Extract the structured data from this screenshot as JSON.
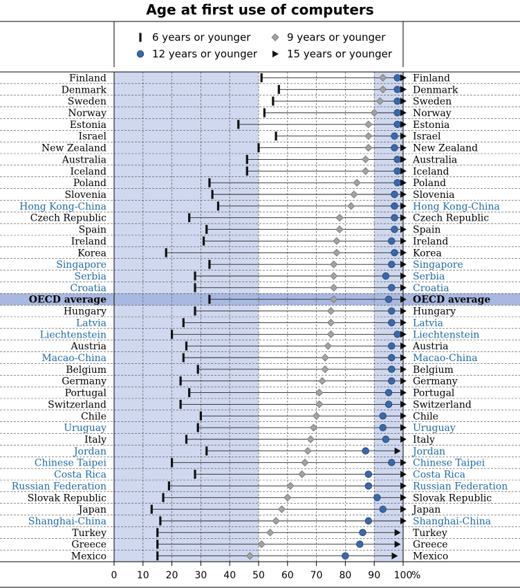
{
  "chart_data": {
    "type": "scatter",
    "title": "Age at first use of computers",
    "xlim": [
      0,
      100
    ],
    "xticks": [
      "0",
      "10",
      "20",
      "30",
      "40",
      "50",
      "60",
      "70",
      "80",
      "90",
      "100"
    ],
    "x_unit": "%",
    "shaded_ranges": [
      [
        0,
        50
      ],
      [
        90,
        100
      ]
    ],
    "grid": true,
    "legend_position": "top",
    "colors": {
      "oecd_label": "#000000",
      "partner_label": "#1f6aa5",
      "shade": "#d0d8ef",
      "oecd_band": "#a8b8e0",
      "circle": "#3d68a8",
      "diamond": "#a3a3a3"
    },
    "series": [
      {
        "name": "6 years or younger",
        "marker": "bar"
      },
      {
        "name": "9 years or younger",
        "marker": "diamond"
      },
      {
        "name": "12 years or younger",
        "marker": "circle"
      },
      {
        "name": "15 years or younger",
        "marker": "triangle"
      }
    ],
    "rows": [
      {
        "label": "Finland",
        "group": "oecd",
        "values": [
          51,
          93,
          98,
          100
        ]
      },
      {
        "label": "Denmark",
        "group": "oecd",
        "values": [
          57,
          93,
          98,
          100
        ]
      },
      {
        "label": "Sweden",
        "group": "oecd",
        "values": [
          55,
          92,
          98,
          100
        ]
      },
      {
        "label": "Norway",
        "group": "oecd",
        "values": [
          52,
          90,
          98,
          100
        ]
      },
      {
        "label": "Estonia",
        "group": "oecd",
        "values": [
          43,
          88,
          98,
          100
        ]
      },
      {
        "label": "Israel",
        "group": "oecd",
        "values": [
          56,
          88,
          97,
          100
        ]
      },
      {
        "label": "New Zealand",
        "group": "oecd",
        "values": [
          50,
          88,
          97,
          100
        ]
      },
      {
        "label": "Australia",
        "group": "oecd",
        "values": [
          46,
          87,
          98,
          100
        ]
      },
      {
        "label": "Iceland",
        "group": "oecd",
        "values": [
          46,
          87,
          98,
          100
        ]
      },
      {
        "label": "Poland",
        "group": "oecd",
        "values": [
          33,
          84,
          98,
          100
        ]
      },
      {
        "label": "Slovenia",
        "group": "oecd",
        "values": [
          34,
          83,
          97,
          100
        ]
      },
      {
        "label": "Hong Kong-China",
        "group": "partner",
        "values": [
          36,
          82,
          97,
          100
        ]
      },
      {
        "label": "Czech Republic",
        "group": "oecd",
        "values": [
          26,
          78,
          97,
          100
        ]
      },
      {
        "label": "Spain",
        "group": "oecd",
        "values": [
          32,
          78,
          97,
          100
        ]
      },
      {
        "label": "Ireland",
        "group": "oecd",
        "values": [
          31,
          77,
          96,
          100
        ]
      },
      {
        "label": "Korea",
        "group": "oecd",
        "values": [
          18,
          77,
          97,
          100
        ]
      },
      {
        "label": "Singapore",
        "group": "partner",
        "values": [
          33,
          76,
          96,
          100
        ]
      },
      {
        "label": "Serbia",
        "group": "partner",
        "values": [
          28,
          76,
          94,
          100
        ]
      },
      {
        "label": "Croatia",
        "group": "partner",
        "values": [
          28,
          76,
          96,
          100
        ]
      },
      {
        "label": "OECD average",
        "group": "average",
        "values": [
          33,
          76,
          95,
          100
        ]
      },
      {
        "label": "Hungary",
        "group": "oecd",
        "values": [
          28,
          75,
          96,
          100
        ]
      },
      {
        "label": "Latvia",
        "group": "partner",
        "values": [
          24,
          75,
          96,
          100
        ]
      },
      {
        "label": "Liechtenstein",
        "group": "partner",
        "values": [
          20,
          75,
          98,
          100
        ]
      },
      {
        "label": "Austria",
        "group": "oecd",
        "values": [
          25,
          74,
          96,
          100
        ]
      },
      {
        "label": "Macao-China",
        "group": "partner",
        "values": [
          24,
          73,
          96,
          100
        ]
      },
      {
        "label": "Belgium",
        "group": "oecd",
        "values": [
          29,
          73,
          96,
          100
        ]
      },
      {
        "label": "Germany",
        "group": "oecd",
        "values": [
          23,
          72,
          96,
          100
        ]
      },
      {
        "label": "Portugal",
        "group": "oecd",
        "values": [
          26,
          71,
          95,
          100
        ]
      },
      {
        "label": "Switzerland",
        "group": "oecd",
        "values": [
          23,
          71,
          95,
          100
        ]
      },
      {
        "label": "Chile",
        "group": "oecd",
        "values": [
          30,
          70,
          93,
          100
        ]
      },
      {
        "label": "Uruguay",
        "group": "partner",
        "values": [
          29,
          69,
          93,
          100
        ]
      },
      {
        "label": "Italy",
        "group": "oecd",
        "values": [
          25,
          68,
          94,
          100
        ]
      },
      {
        "label": "Jordan",
        "group": "partner",
        "values": [
          32,
          67,
          87,
          98
        ]
      },
      {
        "label": "Chinese Taipei",
        "group": "partner",
        "values": [
          20,
          66,
          96,
          100
        ]
      },
      {
        "label": "Costa Rica",
        "group": "partner",
        "values": [
          28,
          65,
          88,
          100
        ]
      },
      {
        "label": "Russian Federation",
        "group": "partner",
        "values": [
          19,
          61,
          88,
          100
        ]
      },
      {
        "label": "Slovak Republic",
        "group": "oecd",
        "values": [
          17,
          60,
          91,
          100
        ]
      },
      {
        "label": "Japan",
        "group": "oecd",
        "values": [
          13,
          58,
          93,
          100
        ]
      },
      {
        "label": "Shanghai-China",
        "group": "partner",
        "values": [
          16,
          56,
          88,
          100
        ]
      },
      {
        "label": "Turkey",
        "group": "oecd",
        "values": [
          15,
          54,
          86,
          98
        ]
      },
      {
        "label": "Greece",
        "group": "oecd",
        "values": [
          15,
          51,
          85,
          98
        ]
      },
      {
        "label": "Mexico",
        "group": "oecd",
        "values": [
          15,
          47,
          80,
          97
        ]
      }
    ]
  }
}
